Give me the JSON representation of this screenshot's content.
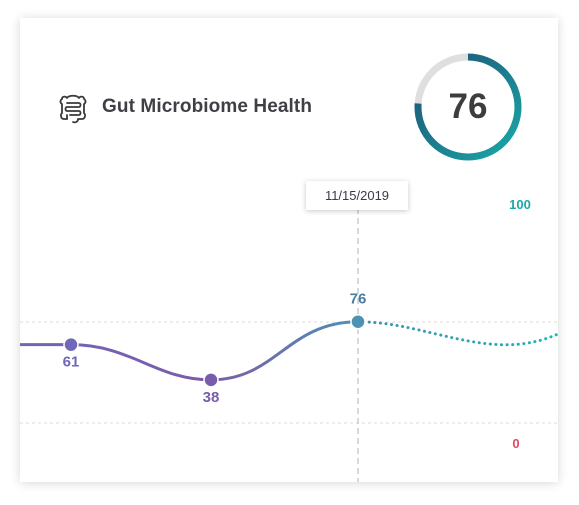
{
  "header": {
    "icon": "intestine-icon",
    "title": "Gut Microbiome Health"
  },
  "score": {
    "value": "76",
    "percent": 76,
    "colors": {
      "track": "#dfdfdf",
      "start": "#1aa9a8",
      "end": "#1c4f72"
    }
  },
  "tooltip": {
    "date": "11/15/2019"
  },
  "chart_data": {
    "type": "line",
    "ylim": [
      0,
      100
    ],
    "y_tick_labels": [
      "100",
      "0"
    ],
    "series": [
      {
        "points": [
          {
            "value": 61,
            "label": "61"
          },
          {
            "value": 38,
            "label": "38"
          },
          {
            "value": 76,
            "label": "76",
            "date": "11/15/2019"
          }
        ],
        "colors": {
          "start": "#6f67b8",
          "mid": "#7d5aa8",
          "end": "#4d92b3"
        }
      },
      {
        "style": "dotted",
        "projection_end": 100,
        "colors": {
          "start": "#4290b0",
          "end": "#1ab7ad"
        }
      }
    ],
    "tick_colors": {
      "max": "#1aa9a8",
      "min": "#e0495f"
    },
    "grid": true
  }
}
